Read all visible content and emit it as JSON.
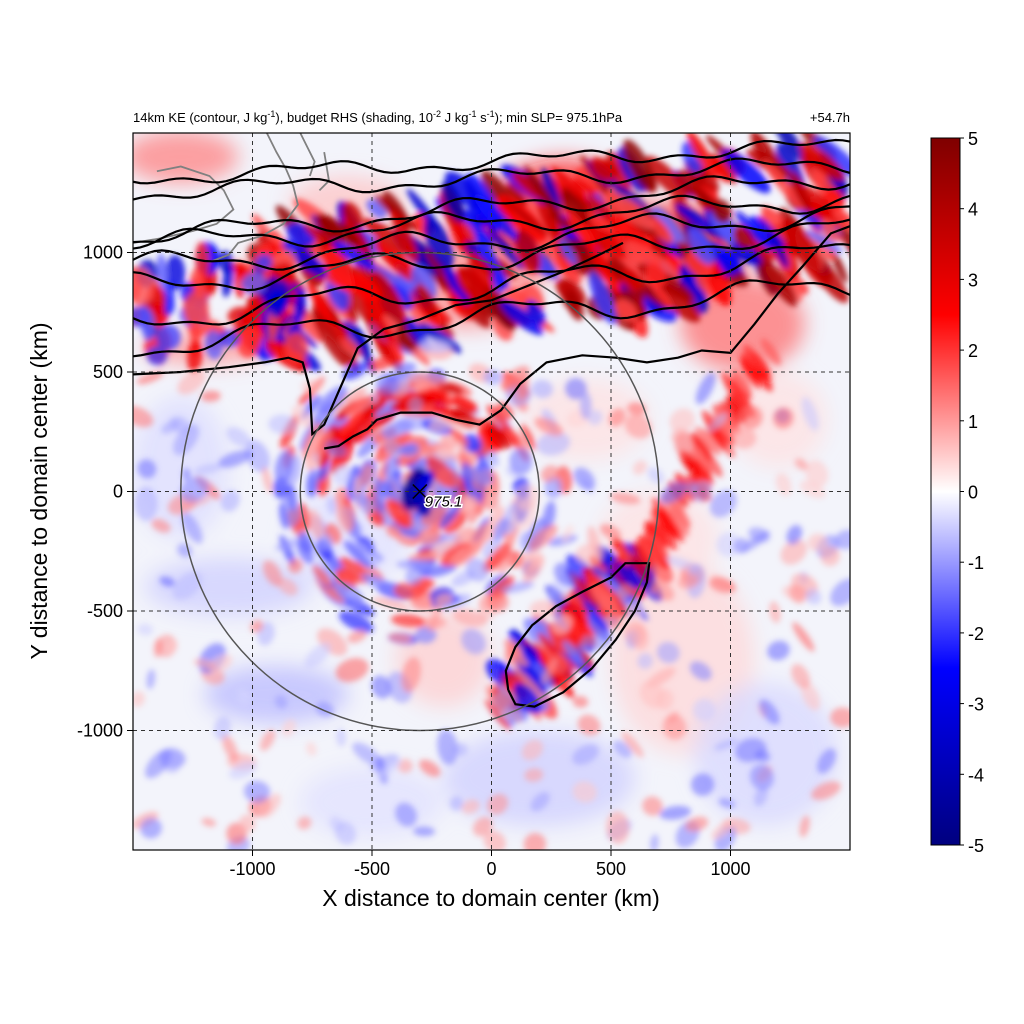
{
  "chart_data": {
    "type": "heatmap",
    "title_left_parts": {
      "a": "14km KE (contour, J kg",
      "a_sup": "-1",
      "b": "), budget RHS (shading, 10",
      "b_sup": "-2",
      "c": " J kg",
      "c_sup": "-1",
      "d": " s",
      "d_sup": "-1",
      "e": "); min SLP= 975.1hPa"
    },
    "title_right": "+54.7h",
    "xlabel": "X distance to domain center (km)",
    "ylabel": "Y distance to domain center (km)",
    "xlim": [
      -1500,
      1500
    ],
    "ylim": [
      -1500,
      1500
    ],
    "x_ticks": [
      -1000,
      -500,
      0,
      500,
      1000
    ],
    "y_ticks": [
      -1000,
      -500,
      0,
      500,
      1000
    ],
    "x_tick_labels": [
      "-1000",
      "-500",
      "0",
      "500",
      "1000"
    ],
    "y_tick_labels": [
      "-1000",
      "-500",
      "0",
      "500",
      "1000"
    ],
    "grid": true,
    "colorbar": {
      "min": -5,
      "max": 5,
      "ticks": [
        5,
        4,
        3,
        2,
        1,
        0,
        -1,
        -2,
        -3,
        -4,
        -5
      ],
      "tick_labels": [
        "5",
        "4",
        "3",
        "2",
        "1",
        "0",
        "-1",
        "-2",
        "-3",
        "-4",
        "-5"
      ],
      "colors": [
        "#00007f",
        "#0000ff",
        "#ffffff",
        "#ff0000",
        "#7f0000"
      ]
    },
    "storm_center": {
      "x": -300,
      "y": 0,
      "label": "975.1"
    },
    "range_rings_km": [
      500,
      1000
    ],
    "ke_contour_color": "#000000",
    "coastline_color": "#808080"
  }
}
